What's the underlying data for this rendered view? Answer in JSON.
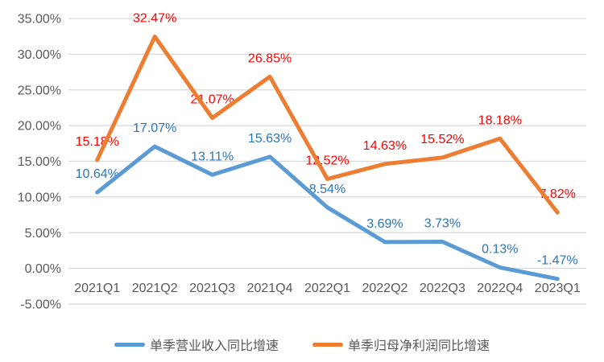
{
  "chart_data": {
    "type": "line",
    "categories": [
      "2021Q1",
      "2021Q2",
      "2021Q3",
      "2021Q4",
      "2022Q1",
      "2022Q2",
      "2022Q3",
      "2022Q4",
      "2023Q1"
    ],
    "series": [
      {
        "name": "单季营业收入同比增速",
        "color": "#5B9BD5",
        "label_color": "#2E75B6",
        "values": [
          10.64,
          17.07,
          13.11,
          15.63,
          8.54,
          3.69,
          3.73,
          0.13,
          -1.47
        ],
        "labels": [
          "10.64%",
          "17.07%",
          "13.11%",
          "15.63%",
          "8.54%",
          "3.69%",
          "3.73%",
          "0.13%",
          "-1.47%"
        ]
      },
      {
        "name": "单季归母净利润同比增速",
        "color": "#ED7D31",
        "label_color": "#FF0000",
        "values": [
          15.18,
          32.47,
          21.07,
          26.85,
          12.52,
          14.63,
          15.52,
          18.18,
          7.82
        ],
        "labels": [
          "15.18%",
          "32.47%",
          "21.07%",
          "26.85%",
          "12.52%",
          "14.63%",
          "15.52%",
          "18.18%",
          "7.82%"
        ]
      }
    ],
    "y_axis": {
      "min": -5,
      "max": 35,
      "step": 5,
      "tick_labels": [
        "-5.00%",
        "0.00%",
        "5.00%",
        "10.00%",
        "15.00%",
        "20.00%",
        "25.00%",
        "30.00%",
        "35.00%"
      ]
    },
    "colors": {
      "grid": "#D9D9D9",
      "axis_text": "#595959",
      "background": "#FFFFFF"
    },
    "grid": true,
    "legend_position": "bottom"
  }
}
